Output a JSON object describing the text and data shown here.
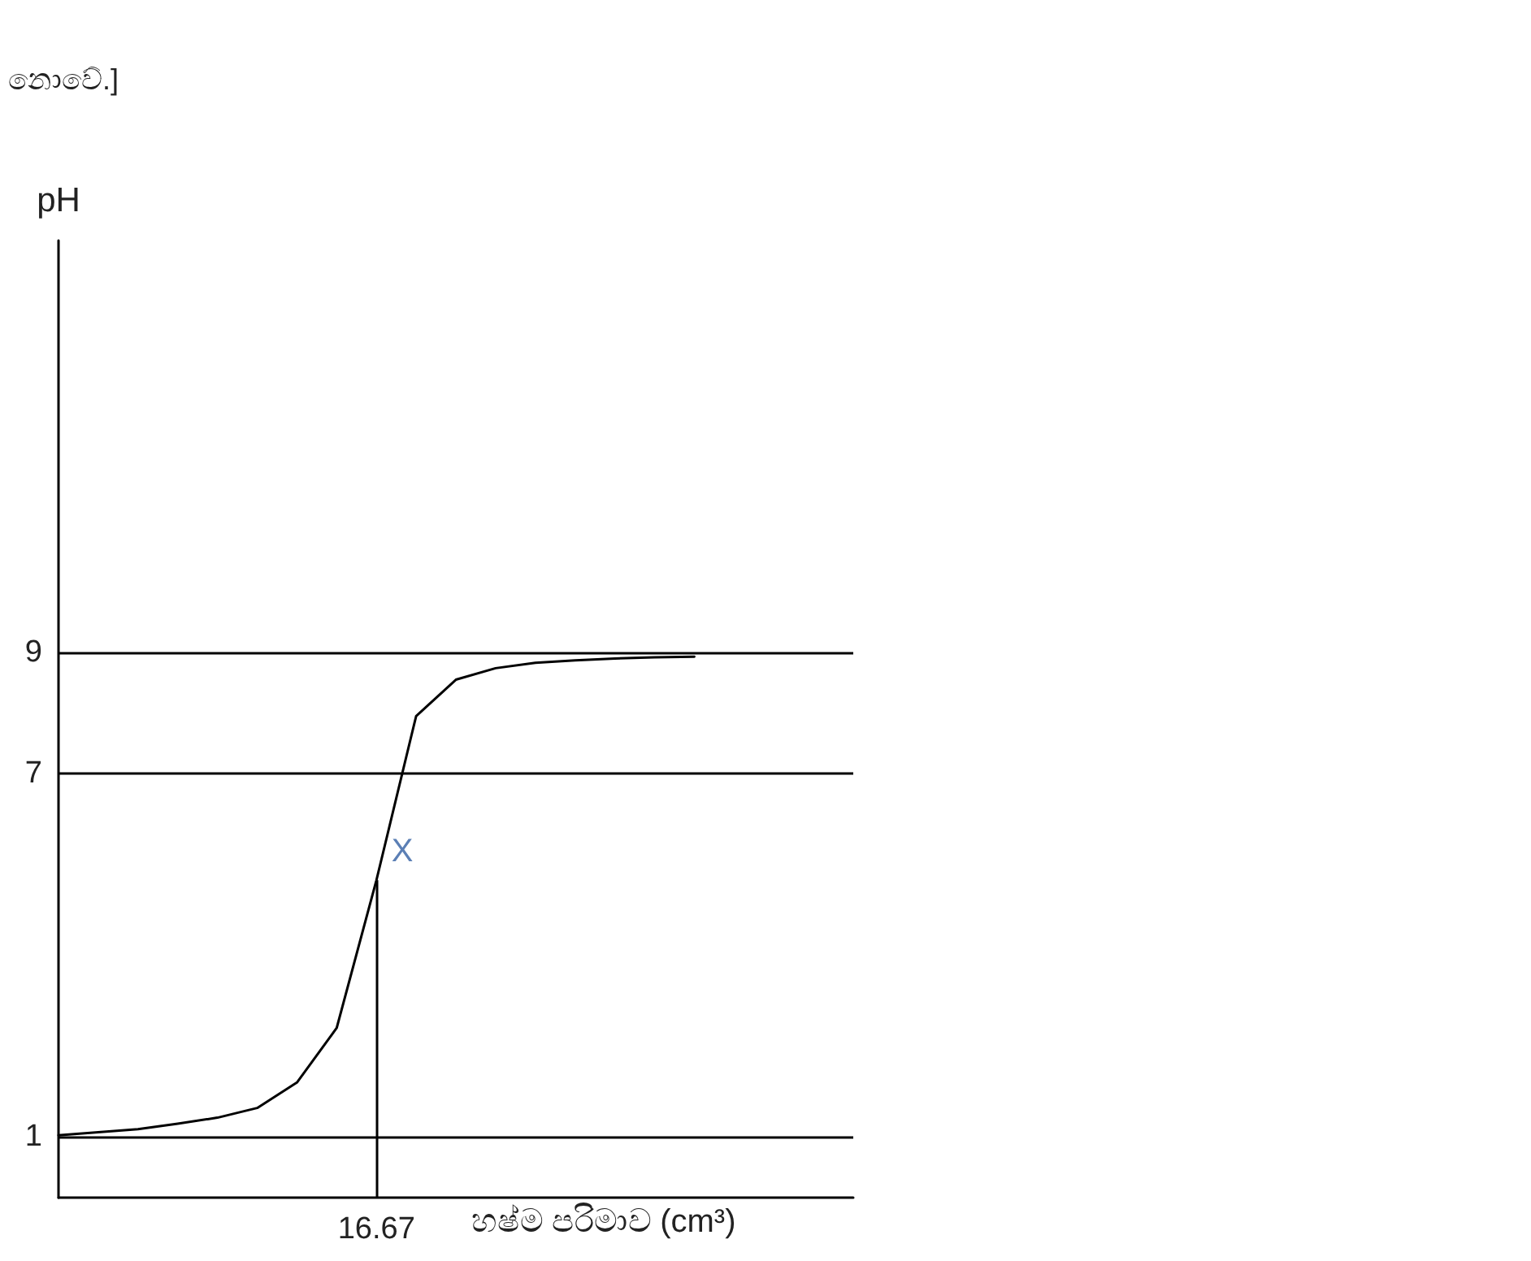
{
  "chart_data": {
    "type": "line",
    "xlabel": "හෂ්ම පරිමාව (cm³)",
    "ylabel": "pH",
    "annotations": [
      "නොවේ.]",
      {
        "text": "X",
        "x": "16.67",
        "y": 5.6
      }
    ],
    "categories": [
      null,
      null,
      null,
      null,
      null,
      null,
      null,
      null,
      "16.67",
      null,
      null,
      null,
      null,
      null,
      null,
      null,
      null,
      null,
      null,
      null,
      null
    ],
    "series": [
      {
        "color": "#000000",
        "values": [
          1.03,
          1.08,
          1.13,
          1.22,
          1.32,
          1.48,
          1.9,
          2.8,
          5.24,
          7.95,
          8.55,
          8.74,
          8.83,
          8.87,
          8.9,
          8.92,
          8.93,
          null,
          null,
          null,
          null
        ]
      }
    ],
    "ref_lines": [
      {
        "axis": "x",
        "value": "16.67",
        "color": "#000000",
        "line_style": "solid"
      }
    ],
    "ylim": [
      0,
      15.8
    ],
    "yticks": [
      1,
      7,
      9
    ],
    "grid": "y",
    "marker": "none",
    "line_style": "solid"
  }
}
